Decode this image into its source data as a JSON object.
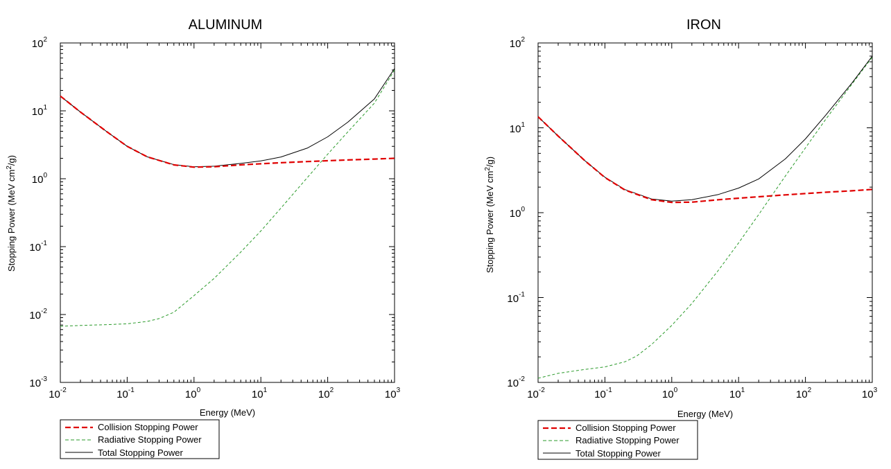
{
  "chart_data": [
    {
      "type": "line",
      "title": "ALUMINUM",
      "xlabel": "Energy (MeV)",
      "ylabel": "Stopping Power (MeV cm2/g)",
      "xscale": "log",
      "yscale": "log",
      "xlim": [
        0.01,
        1000
      ],
      "ylim": [
        0.001,
        100
      ],
      "xticks": [
        {
          "base": "10",
          "exp": "-2"
        },
        {
          "base": "10",
          "exp": "-1"
        },
        {
          "base": "10",
          "exp": "0"
        },
        {
          "base": "10",
          "exp": "1"
        },
        {
          "base": "10",
          "exp": "2"
        },
        {
          "base": "10",
          "exp": "3"
        }
      ],
      "yticks": [
        {
          "base": "10",
          "exp": "-3"
        },
        {
          "base": "10",
          "exp": "-2"
        },
        {
          "base": "10",
          "exp": "-1"
        },
        {
          "base": "10",
          "exp": "0"
        },
        {
          "base": "10",
          "exp": "1"
        },
        {
          "base": "10",
          "exp": "2"
        }
      ],
      "grid": false,
      "legend_position": "below-left",
      "series": [
        {
          "name": "Collision Stopping Power",
          "color": "#e00000",
          "style": "dashed-thick",
          "x": [
            0.01,
            0.02,
            0.05,
            0.1,
            0.2,
            0.5,
            1,
            2,
            5,
            10,
            20,
            50,
            100,
            200,
            500,
            1000
          ],
          "y": [
            16.5,
            9.6,
            4.9,
            3.0,
            2.1,
            1.6,
            1.48,
            1.5,
            1.6,
            1.66,
            1.72,
            1.79,
            1.84,
            1.89,
            1.95,
            2.0
          ]
        },
        {
          "name": "Radiative Stopping Power",
          "color": "#2a9a2a",
          "style": "dashed-thin",
          "x": [
            0.01,
            0.02,
            0.05,
            0.1,
            0.2,
            0.3,
            0.5,
            1,
            2,
            5,
            10,
            20,
            50,
            100,
            200,
            500,
            1000
          ],
          "y": [
            0.0067,
            0.0069,
            0.0071,
            0.0073,
            0.0079,
            0.0087,
            0.0108,
            0.019,
            0.034,
            0.083,
            0.17,
            0.37,
            1.05,
            2.3,
            4.9,
            13,
            40
          ]
        },
        {
          "name": "Total Stopping Power",
          "color": "#000000",
          "style": "solid",
          "x": [
            0.01,
            0.02,
            0.05,
            0.1,
            0.2,
            0.5,
            1,
            2,
            5,
            10,
            20,
            50,
            100,
            200,
            500,
            1000
          ],
          "y": [
            16.5,
            9.6,
            4.9,
            3.0,
            2.1,
            1.61,
            1.5,
            1.53,
            1.68,
            1.83,
            2.09,
            2.84,
            4.14,
            6.8,
            15,
            42
          ]
        }
      ]
    },
    {
      "type": "line",
      "title": "IRON",
      "xlabel": "Energy (MeV)",
      "ylabel": "Stopping Power (MeV cm2/g)",
      "xscale": "log",
      "yscale": "log",
      "xlim": [
        0.01,
        1000
      ],
      "ylim": [
        0.01,
        100
      ],
      "xticks": [
        {
          "base": "10",
          "exp": "-2"
        },
        {
          "base": "10",
          "exp": "-1"
        },
        {
          "base": "10",
          "exp": "0"
        },
        {
          "base": "10",
          "exp": "1"
        },
        {
          "base": "10",
          "exp": "2"
        },
        {
          "base": "10",
          "exp": "3"
        }
      ],
      "yticks": [
        {
          "base": "10",
          "exp": "-2"
        },
        {
          "base": "10",
          "exp": "-1"
        },
        {
          "base": "10",
          "exp": "0"
        },
        {
          "base": "10",
          "exp": "1"
        },
        {
          "base": "10",
          "exp": "2"
        }
      ],
      "grid": false,
      "legend_position": "below-left",
      "series": [
        {
          "name": "Collision Stopping Power",
          "color": "#e00000",
          "style": "dashed-thick",
          "x": [
            0.01,
            0.02,
            0.05,
            0.1,
            0.2,
            0.5,
            1,
            2,
            5,
            10,
            20,
            50,
            100,
            200,
            500,
            1000
          ],
          "y": [
            13.5,
            8.0,
            4.1,
            2.6,
            1.85,
            1.42,
            1.32,
            1.33,
            1.42,
            1.48,
            1.54,
            1.62,
            1.68,
            1.74,
            1.81,
            1.88
          ]
        },
        {
          "name": "Radiative Stopping Power",
          "color": "#2a9a2a",
          "style": "dashed-thin",
          "x": [
            0.01,
            0.02,
            0.05,
            0.1,
            0.2,
            0.3,
            0.5,
            1,
            2,
            5,
            10,
            20,
            50,
            100,
            200,
            500,
            1000
          ],
          "y": [
            0.0112,
            0.0128,
            0.0142,
            0.0152,
            0.0175,
            0.0205,
            0.028,
            0.047,
            0.085,
            0.21,
            0.44,
            0.95,
            2.7,
            5.8,
            12.5,
            33,
            68
          ]
        },
        {
          "name": "Total Stopping Power",
          "color": "#000000",
          "style": "solid",
          "x": [
            0.01,
            0.02,
            0.05,
            0.1,
            0.2,
            0.5,
            1,
            2,
            5,
            10,
            20,
            50,
            100,
            200,
            500,
            1000
          ],
          "y": [
            13.5,
            8.0,
            4.1,
            2.62,
            1.87,
            1.45,
            1.37,
            1.42,
            1.64,
            1.95,
            2.5,
            4.3,
            7.4,
            14,
            34,
            70
          ]
        }
      ]
    }
  ]
}
